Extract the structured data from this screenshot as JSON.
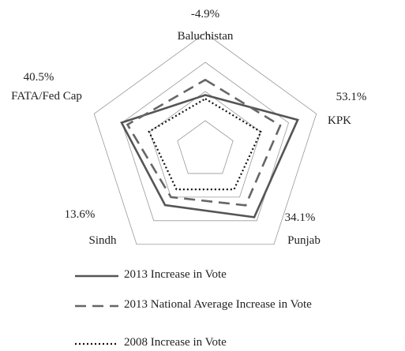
{
  "chart_data": {
    "type": "radar",
    "categories": [
      "Baluchistan",
      "KPK",
      "Punjab",
      "Sindh",
      "FATA/Fed Cap"
    ],
    "ylim": [
      -80,
      80
    ],
    "yticks": [
      -80,
      -40,
      0,
      40,
      80
    ],
    "grid": true,
    "series": [
      {
        "name": "2013 Increase in Vote",
        "color": "#555555",
        "line_style": "solid",
        "values": [
          -4.9,
          53.1,
          34.1,
          13.6,
          40.5
        ],
        "value_labels": [
          "-4.9%",
          "53.1%",
          "34.1%",
          "13.6%",
          "40.5%"
        ]
      },
      {
        "name": "2013 National Average Increase in Vote",
        "color": "#666666",
        "line_style": "dashed",
        "values": [
          16,
          28,
          14,
          0,
          32
        ]
      },
      {
        "name": "2008 Increase in Vote",
        "color": "#111111",
        "line_style": "dotted",
        "values": [
          -10,
          0,
          -13,
          -13,
          1
        ]
      }
    ]
  }
}
